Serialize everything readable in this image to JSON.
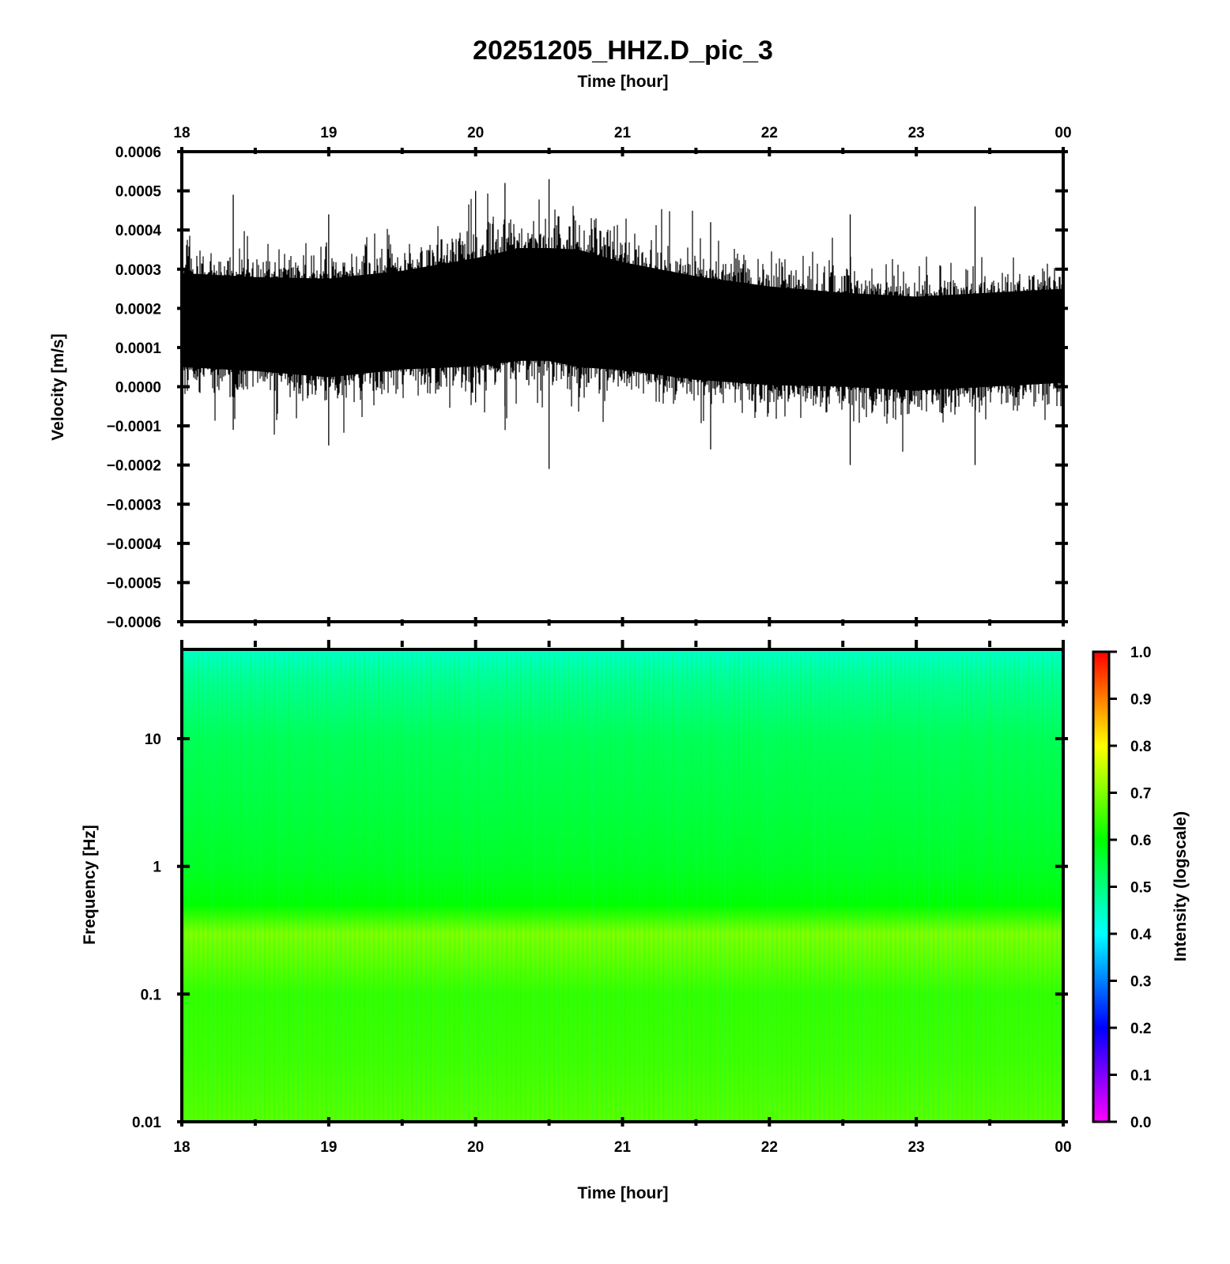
{
  "chart_data": [
    {
      "type": "line",
      "panel": "waveform",
      "title": "20251205_HHZ.D_pic_3",
      "xlabel": "Time [hour]",
      "ylabel": "Velocity [m/s]",
      "x_tick_labels": [
        "18",
        "19",
        "20",
        "21",
        "22",
        "23",
        "00"
      ],
      "xlim": [
        18,
        24
      ],
      "ylim": [
        -0.0006,
        0.0006
      ],
      "y_tick_labels": [
        "0.0006",
        "0.0005",
        "0.0004",
        "0.0003",
        "0.0002",
        "0.0001",
        "0.0000",
        "−0.0001",
        "−0.0002",
        "−0.0003",
        "−0.0004",
        "−0.0005",
        "−0.0006"
      ],
      "y_tick_values": [
        0.0006,
        0.0005,
        0.0004,
        0.0003,
        0.0002,
        0.0001,
        0.0,
        -0.0001,
        -0.0002,
        -0.0003,
        -0.0004,
        -0.0005,
        -0.0006
      ],
      "trace_color": "#000000",
      "envelope": {
        "x": [
          18.0,
          18.5,
          19.0,
          19.5,
          20.0,
          20.3,
          20.5,
          20.7,
          21.0,
          21.5,
          22.0,
          22.5,
          23.0,
          23.5,
          24.0
        ],
        "center": [
          0.00017,
          0.00016,
          0.00015,
          0.00017,
          0.00019,
          0.00021,
          0.00021,
          0.0002,
          0.00018,
          0.00015,
          0.00013,
          0.00012,
          0.00011,
          0.00012,
          0.00013
        ],
        "half_width": [
          0.0002,
          0.0002,
          0.00021,
          0.00021,
          0.00023,
          0.00024,
          0.00024,
          0.00025,
          0.00023,
          0.00022,
          0.00021,
          0.0002,
          0.0002,
          0.0002,
          0.0002
        ]
      },
      "spikes": [
        {
          "x": 20.5,
          "y_max": 0.00053,
          "y_min": -0.00021
        },
        {
          "x": 20.2,
          "y_max": 0.00052,
          "y_min": -5e-05
        },
        {
          "x": 20.0,
          "y_max": 0.0005,
          "y_min": -4e-05
        },
        {
          "x": 19.0,
          "y_max": 0.00044,
          "y_min": -0.00015
        },
        {
          "x": 18.35,
          "y_max": 0.00049,
          "y_min": -0.00011
        },
        {
          "x": 23.4,
          "y_max": 0.00046,
          "y_min": -0.0002
        },
        {
          "x": 22.55,
          "y_max": 0.00044,
          "y_min": -0.0002
        },
        {
          "x": 21.6,
          "y_max": 0.00042,
          "y_min": -0.00016
        }
      ]
    },
    {
      "type": "heatmap",
      "panel": "spectrogram",
      "xlabel": "Time [hour]",
      "ylabel": "Frequency [Hz]",
      "x_tick_labels": [
        "18",
        "19",
        "20",
        "21",
        "22",
        "23",
        "00"
      ],
      "xlim": [
        18,
        24
      ],
      "y_scale": "log",
      "ylim": [
        0.01,
        50
      ],
      "y_tick_labels": [
        "10",
        "1",
        "0.1",
        "0.01"
      ],
      "y_tick_values": [
        10,
        1,
        0.1,
        0.01
      ],
      "intensity_profile": {
        "frequency": [
          50,
          30,
          10,
          3,
          1,
          0.5,
          0.3,
          0.2,
          0.1,
          0.03,
          0.01
        ],
        "intensity": [
          0.44,
          0.48,
          0.53,
          0.55,
          0.57,
          0.6,
          0.7,
          0.68,
          0.64,
          0.65,
          0.67
        ]
      },
      "colorbar": {
        "label": "Intensity (logscale)",
        "range": [
          0.0,
          1.0
        ],
        "tick_labels": [
          "1.0",
          "0.9",
          "0.8",
          "0.7",
          "0.6",
          "0.5",
          "0.4",
          "0.3",
          "0.2",
          "0.1",
          "0.0"
        ],
        "tick_values": [
          1.0,
          0.9,
          0.8,
          0.7,
          0.6,
          0.5,
          0.4,
          0.3,
          0.2,
          0.1,
          0.0
        ],
        "colors": [
          "#ff00ff",
          "#0000ff",
          "#00ffff",
          "#00ff00",
          "#ffff00",
          "#ff0000"
        ]
      }
    }
  ]
}
